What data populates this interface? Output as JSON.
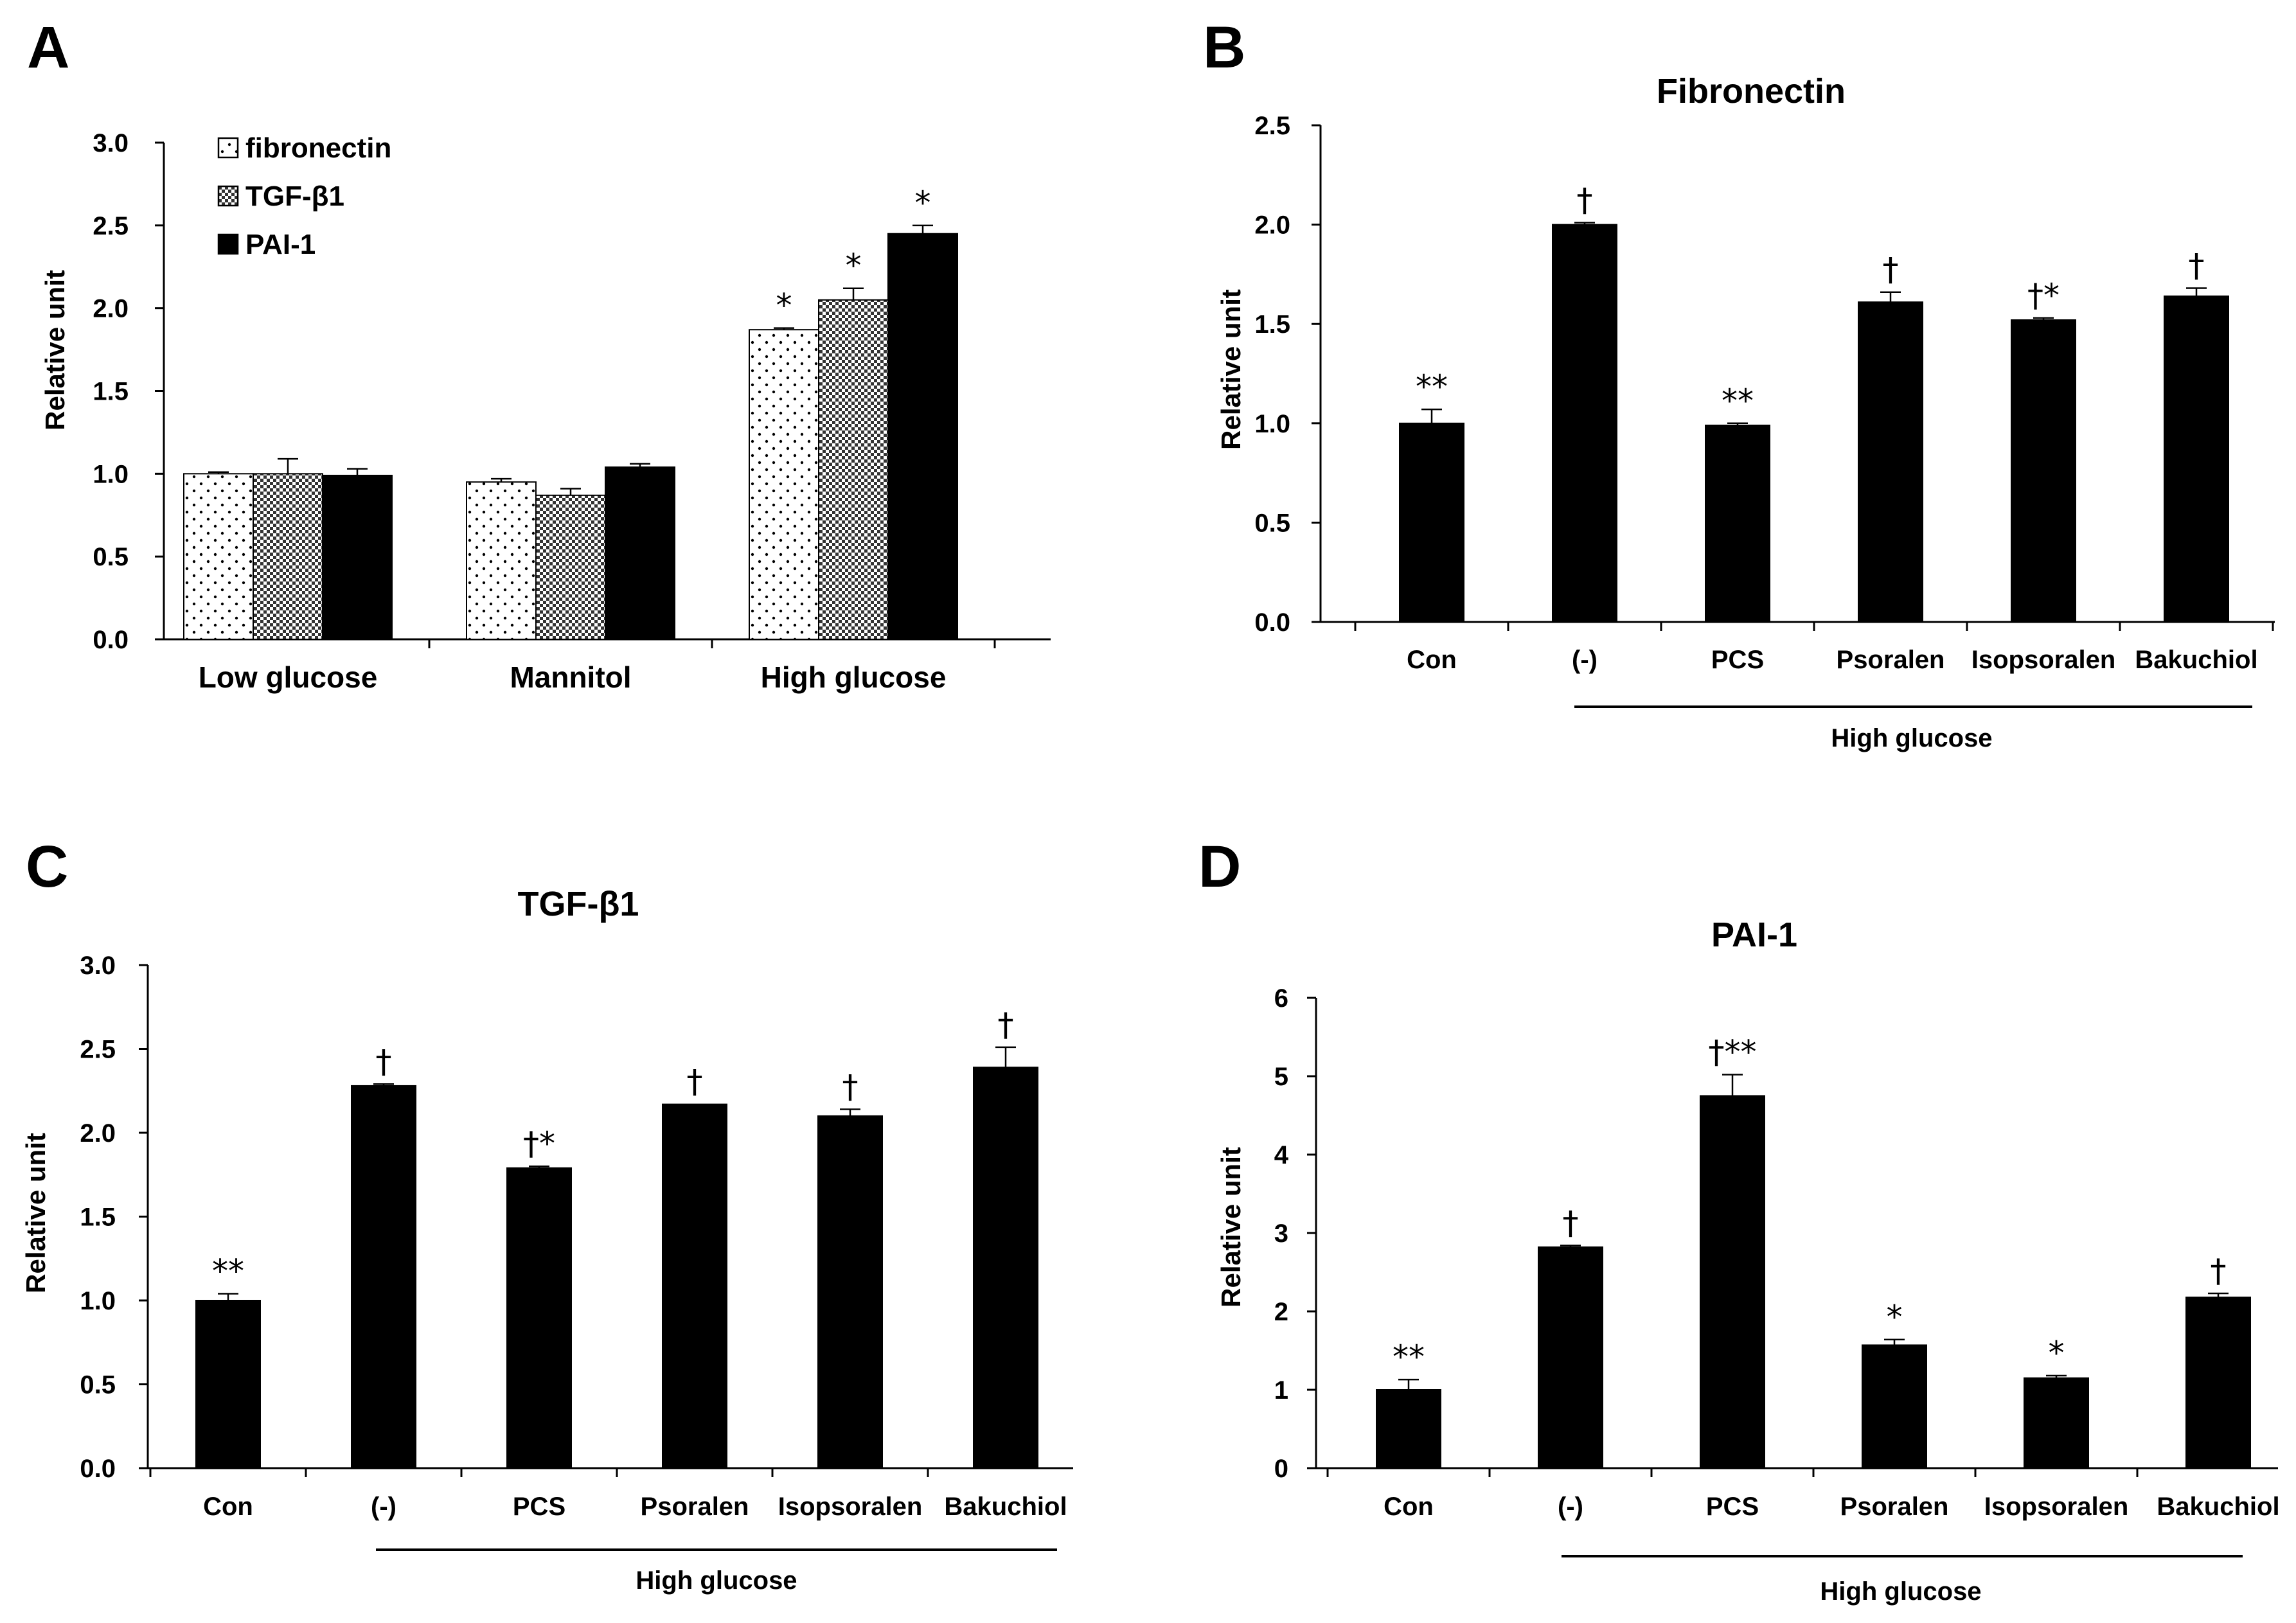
{
  "chart_data": [
    {
      "panel": "A",
      "type": "bar",
      "title": "",
      "ylabel": "Relative unit",
      "xlabel": "",
      "ylim": [
        0,
        3.0
      ],
      "yticks": [
        "0.0",
        "0.5",
        "1.0",
        "1.5",
        "2.0",
        "2.5",
        "3.0"
      ],
      "categories": [
        "Low glucose",
        "Mannitol",
        "High glucose"
      ],
      "series": [
        {
          "name": "fibronectin",
          "fill": "dots",
          "values": [
            1.0,
            0.95,
            1.87
          ],
          "errors": [
            0.01,
            0.02,
            0.01
          ],
          "annotations": [
            "",
            "",
            "*"
          ]
        },
        {
          "name": "TGF-β1",
          "fill": "checker",
          "values": [
            1.0,
            0.87,
            2.05
          ],
          "errors": [
            0.09,
            0.04,
            0.07
          ],
          "annotations": [
            "",
            "",
            "*"
          ]
        },
        {
          "name": "PAI-1",
          "fill": "black",
          "values": [
            0.99,
            1.04,
            2.45
          ],
          "errors": [
            0.04,
            0.02,
            0.05
          ],
          "annotations": [
            "",
            "",
            "*"
          ]
        }
      ],
      "legend_position": "top-left"
    },
    {
      "panel": "B",
      "type": "bar",
      "title": "Fibronectin",
      "ylabel": "Relative unit",
      "xlabel": "",
      "ylim": [
        0,
        2.5
      ],
      "yticks": [
        "0.0",
        "0.5",
        "1.0",
        "1.5",
        "2.0",
        "2.5"
      ],
      "categories": [
        "Con",
        "(-)",
        "PCS",
        "Psoralen",
        "Isopsoralen",
        "Bakuchiol"
      ],
      "values": [
        1.0,
        2.0,
        0.99,
        1.61,
        1.52,
        1.64
      ],
      "errors": [
        0.07,
        0.01,
        0.01,
        0.05,
        0.01,
        0.04
      ],
      "annotations": [
        "**",
        "†",
        "**",
        "†",
        "†*",
        "†"
      ],
      "group_label": "High glucose"
    },
    {
      "panel": "C",
      "type": "bar",
      "title": "TGF-β1",
      "ylabel": "Relative unit",
      "xlabel": "",
      "ylim": [
        0,
        3.0
      ],
      "yticks": [
        "0.0",
        "0.5",
        "1.0",
        "1.5",
        "2.0",
        "2.5",
        "3.0"
      ],
      "categories": [
        "Con",
        "(-)",
        "PCS",
        "Psoralen",
        "Isopsoralen",
        "Bakuchiol"
      ],
      "values": [
        1.0,
        2.28,
        1.79,
        2.17,
        2.1,
        2.39
      ],
      "errors": [
        0.04,
        0.01,
        0.01,
        0.0,
        0.04,
        0.12
      ],
      "annotations": [
        "**",
        "†",
        "†*",
        "†",
        "†",
        "†"
      ],
      "group_label": "High glucose"
    },
    {
      "panel": "D",
      "type": "bar",
      "title": "PAI-1",
      "ylabel": "Relative unit",
      "xlabel": "",
      "ylim": [
        0,
        6
      ],
      "yticks": [
        "0",
        "1",
        "2",
        "3",
        "4",
        "5",
        "6"
      ],
      "categories": [
        "Con",
        "(-)",
        "PCS",
        "Psoralen",
        "Isopsoralen",
        "Bakuchiol"
      ],
      "values": [
        1.0,
        2.82,
        4.75,
        1.57,
        1.15,
        2.18
      ],
      "errors": [
        0.13,
        0.02,
        0.27,
        0.07,
        0.03,
        0.05
      ],
      "annotations": [
        "**",
        "†",
        "†**",
        "*",
        "*",
        "†"
      ],
      "group_label": "High glucose"
    }
  ]
}
